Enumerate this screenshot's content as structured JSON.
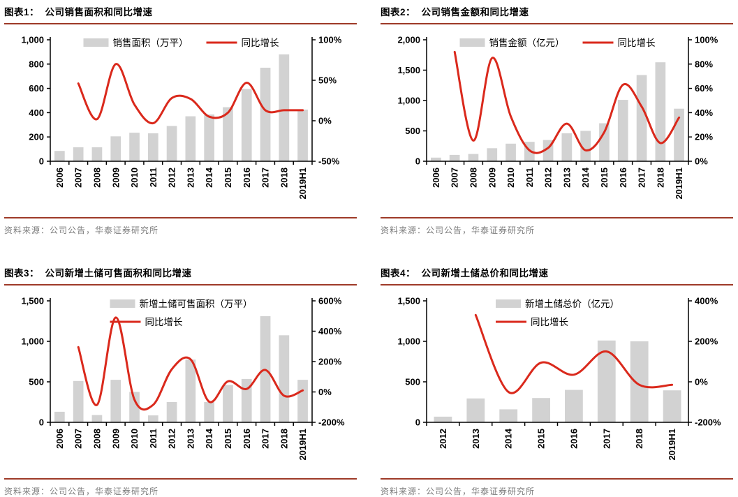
{
  "source_label": "资料来源：公司公告，华泰证券研究所",
  "colors": {
    "bar": "#d2d2d2",
    "line": "#da291c",
    "rule": "#9e3a28",
    "axis": "#000000",
    "source_text": "#7e7e7e"
  },
  "chart_data": [
    {
      "type": "bar",
      "title": "图表1：  公司销售面积和同比增速",
      "categories": [
        "2006",
        "2007",
        "2008",
        "2009",
        "2010",
        "2011",
        "2012",
        "2013",
        "2014",
        "2015",
        "2016",
        "2017",
        "2018",
        "2019H1"
      ],
      "series": [
        {
          "name": "销售面积（万平）",
          "kind": "bar",
          "axis": "left",
          "values": [
            85,
            115,
            115,
            205,
            235,
            230,
            290,
            370,
            385,
            445,
            595,
            770,
            880,
            425
          ]
        },
        {
          "name": "同比增长",
          "kind": "line",
          "axis": "right",
          "values": [
            null,
            46,
            2,
            70,
            20,
            -3,
            28,
            27,
            5,
            10,
            47,
            13,
            13,
            13
          ]
        }
      ],
      "left_axis": {
        "min": 0,
        "max": 1000,
        "step": 200,
        "labels": [
          "0",
          "200",
          "400",
          "600",
          "800",
          "1,000"
        ]
      },
      "right_axis": {
        "min": -50,
        "max": 100,
        "step": 50,
        "labels": [
          "-50%",
          "0%",
          "50%",
          "100%"
        ]
      },
      "legend_rows": 1,
      "grid": "off",
      "legend_position": "top-center"
    },
    {
      "type": "bar",
      "title": "图表2：  公司销售金额和同比增速",
      "categories": [
        "2006",
        "2007",
        "2008",
        "2009",
        "2010",
        "2011",
        "2012",
        "2013",
        "2014",
        "2015",
        "2016",
        "2017",
        "2018",
        "2019H1"
      ],
      "series": [
        {
          "name": "销售金额（亿元）",
          "kind": "bar",
          "axis": "left",
          "values": [
            60,
            105,
            120,
            215,
            290,
            320,
            350,
            460,
            500,
            625,
            1010,
            1420,
            1630,
            865
          ]
        },
        {
          "name": "同比增长",
          "kind": "line",
          "axis": "right",
          "values": [
            null,
            90,
            17,
            85,
            37,
            9,
            11,
            31,
            9,
            24,
            63,
            45,
            15,
            36
          ]
        }
      ],
      "left_axis": {
        "min": 0,
        "max": 2000,
        "step": 500,
        "labels": [
          "0",
          "500",
          "1,000",
          "1,500",
          "2,000"
        ]
      },
      "right_axis": {
        "min": 0,
        "max": 100,
        "step": 20,
        "labels": [
          "0%",
          "20%",
          "40%",
          "60%",
          "80%",
          "100%"
        ]
      },
      "legend_rows": 1,
      "grid": "off",
      "legend_position": "top-center"
    },
    {
      "type": "bar",
      "title": "图表3：  公司新增土储可售面积和同比增速",
      "categories": [
        "2006",
        "2007",
        "2008",
        "2009",
        "2010",
        "2011",
        "2012",
        "2013",
        "2014",
        "2015",
        "2016",
        "2017",
        "2018",
        "2019H1"
      ],
      "series": [
        {
          "name": "新增土储可售面积（万平）",
          "kind": "bar",
          "axis": "left",
          "values": [
            130,
            510,
            90,
            525,
            375,
            85,
            250,
            775,
            250,
            460,
            535,
            1310,
            1075,
            525
          ]
        },
        {
          "name": "同比增长",
          "kind": "line",
          "axis": "right",
          "values": [
            null,
            295,
            -85,
            490,
            -50,
            -85,
            150,
            215,
            -65,
            70,
            20,
            145,
            -25,
            10
          ]
        }
      ],
      "left_axis": {
        "min": 0,
        "max": 1500,
        "step": 500,
        "labels": [
          "0",
          "500",
          "1,000",
          "1,500"
        ]
      },
      "right_axis": {
        "min": -200,
        "max": 600,
        "step": 200,
        "labels": [
          "-200%",
          "0%",
          "200%",
          "400%",
          "600%"
        ]
      },
      "legend_rows": 2,
      "grid": "off",
      "legend_position": "top-center"
    },
    {
      "type": "bar",
      "title": "图表4：  公司新增土储总价和同比增速",
      "categories": [
        "2012",
        "2013",
        "2014",
        "2015",
        "2016",
        "2017",
        "2018",
        "2019H1"
      ],
      "series": [
        {
          "name": "新增土储总价（亿元）",
          "kind": "bar",
          "axis": "left",
          "values": [
            70,
            295,
            160,
            300,
            400,
            1010,
            1000,
            395
          ]
        },
        {
          "name": "同比增长",
          "kind": "line",
          "axis": "right",
          "values": [
            null,
            330,
            -50,
            95,
            35,
            150,
            -15,
            -15
          ]
        }
      ],
      "left_axis": {
        "min": 0,
        "max": 1500,
        "step": 500,
        "labels": [
          "0",
          "500",
          "1,000",
          "1,500"
        ]
      },
      "right_axis": {
        "min": -200,
        "max": 400,
        "step": 200,
        "labels": [
          "-200%",
          "0%",
          "200%",
          "400%"
        ]
      },
      "legend_rows": 2,
      "grid": "off",
      "legend_position": "top-center"
    }
  ]
}
